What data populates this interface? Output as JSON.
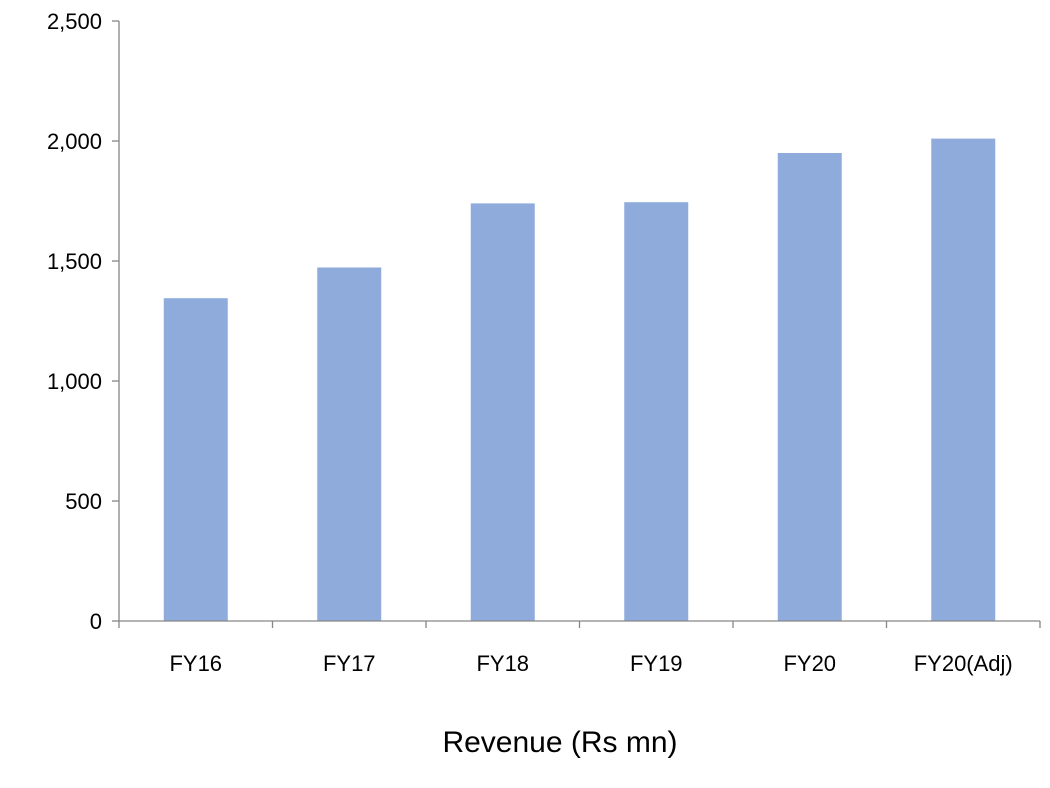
{
  "chart_data": {
    "type": "bar",
    "title": "",
    "xlabel": "Revenue (Rs mn)",
    "ylabel": "",
    "categories": [
      "FY16",
      "FY17",
      "FY18",
      "FY19",
      "FY20",
      "FY20(Adj)"
    ],
    "values": [
      1345,
      1473,
      1740,
      1745,
      1950,
      2010
    ],
    "ylim": [
      0,
      2500
    ],
    "yticks": [
      0,
      500,
      1000,
      1500,
      2000,
      2500
    ],
    "ytick_labels": [
      "0",
      "500",
      "1,000",
      "1,500",
      "2,000",
      "2,500"
    ],
    "grid": false,
    "legend": "none",
    "bar_color": "#8eabdc",
    "axis_color": "#868686"
  }
}
